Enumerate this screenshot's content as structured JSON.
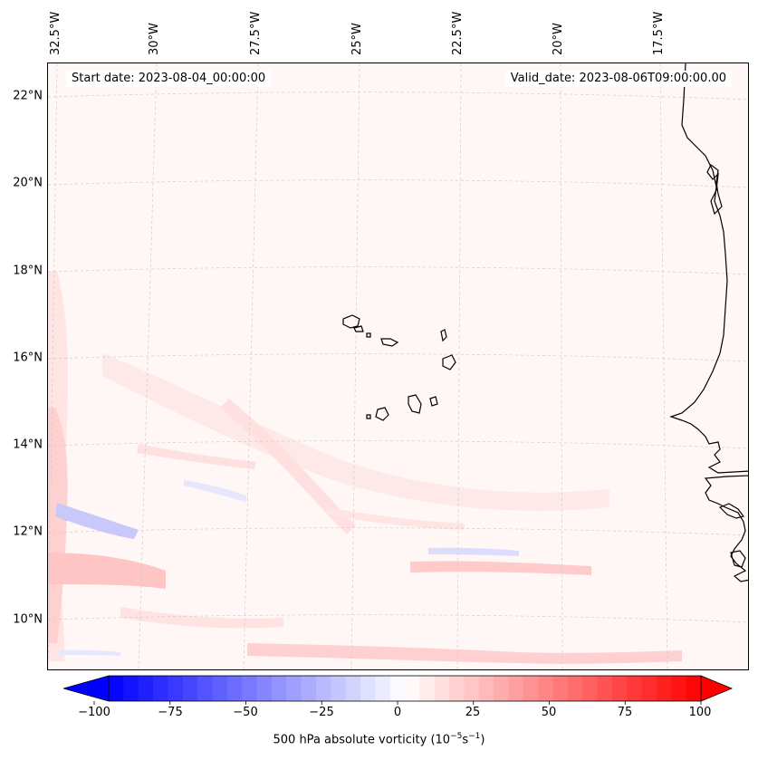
{
  "annotations": {
    "start_date": "Start date: 2023-08-04_00:00:00",
    "valid_date": "Valid_date: 2023-08-06T09:00:00.00"
  },
  "lat_labels": [
    "22°N",
    "20°N",
    "18°N",
    "16°N",
    "14°N",
    "12°N",
    "10°N"
  ],
  "lon_labels": [
    "32.5°W",
    "30°W",
    "27.5°W",
    "25°W",
    "22.5°W",
    "20°W",
    "17.5°W"
  ],
  "colorbar": {
    "ticks": [
      "−100",
      "−75",
      "−50",
      "−25",
      "0",
      "25",
      "50",
      "75",
      "100"
    ],
    "title_main": "500 hPa absolute vorticity (10",
    "title_sup1": "−5",
    "title_mid": "s",
    "title_sup2": "−1",
    "title_end": ")",
    "range": [
      -100,
      100
    ],
    "min_color": "#0000ff",
    "max_color": "#ff0000"
  },
  "colors": {
    "land_outline": "#000000",
    "background_field": "#fff6f6",
    "gridline": "#cccccc"
  }
}
